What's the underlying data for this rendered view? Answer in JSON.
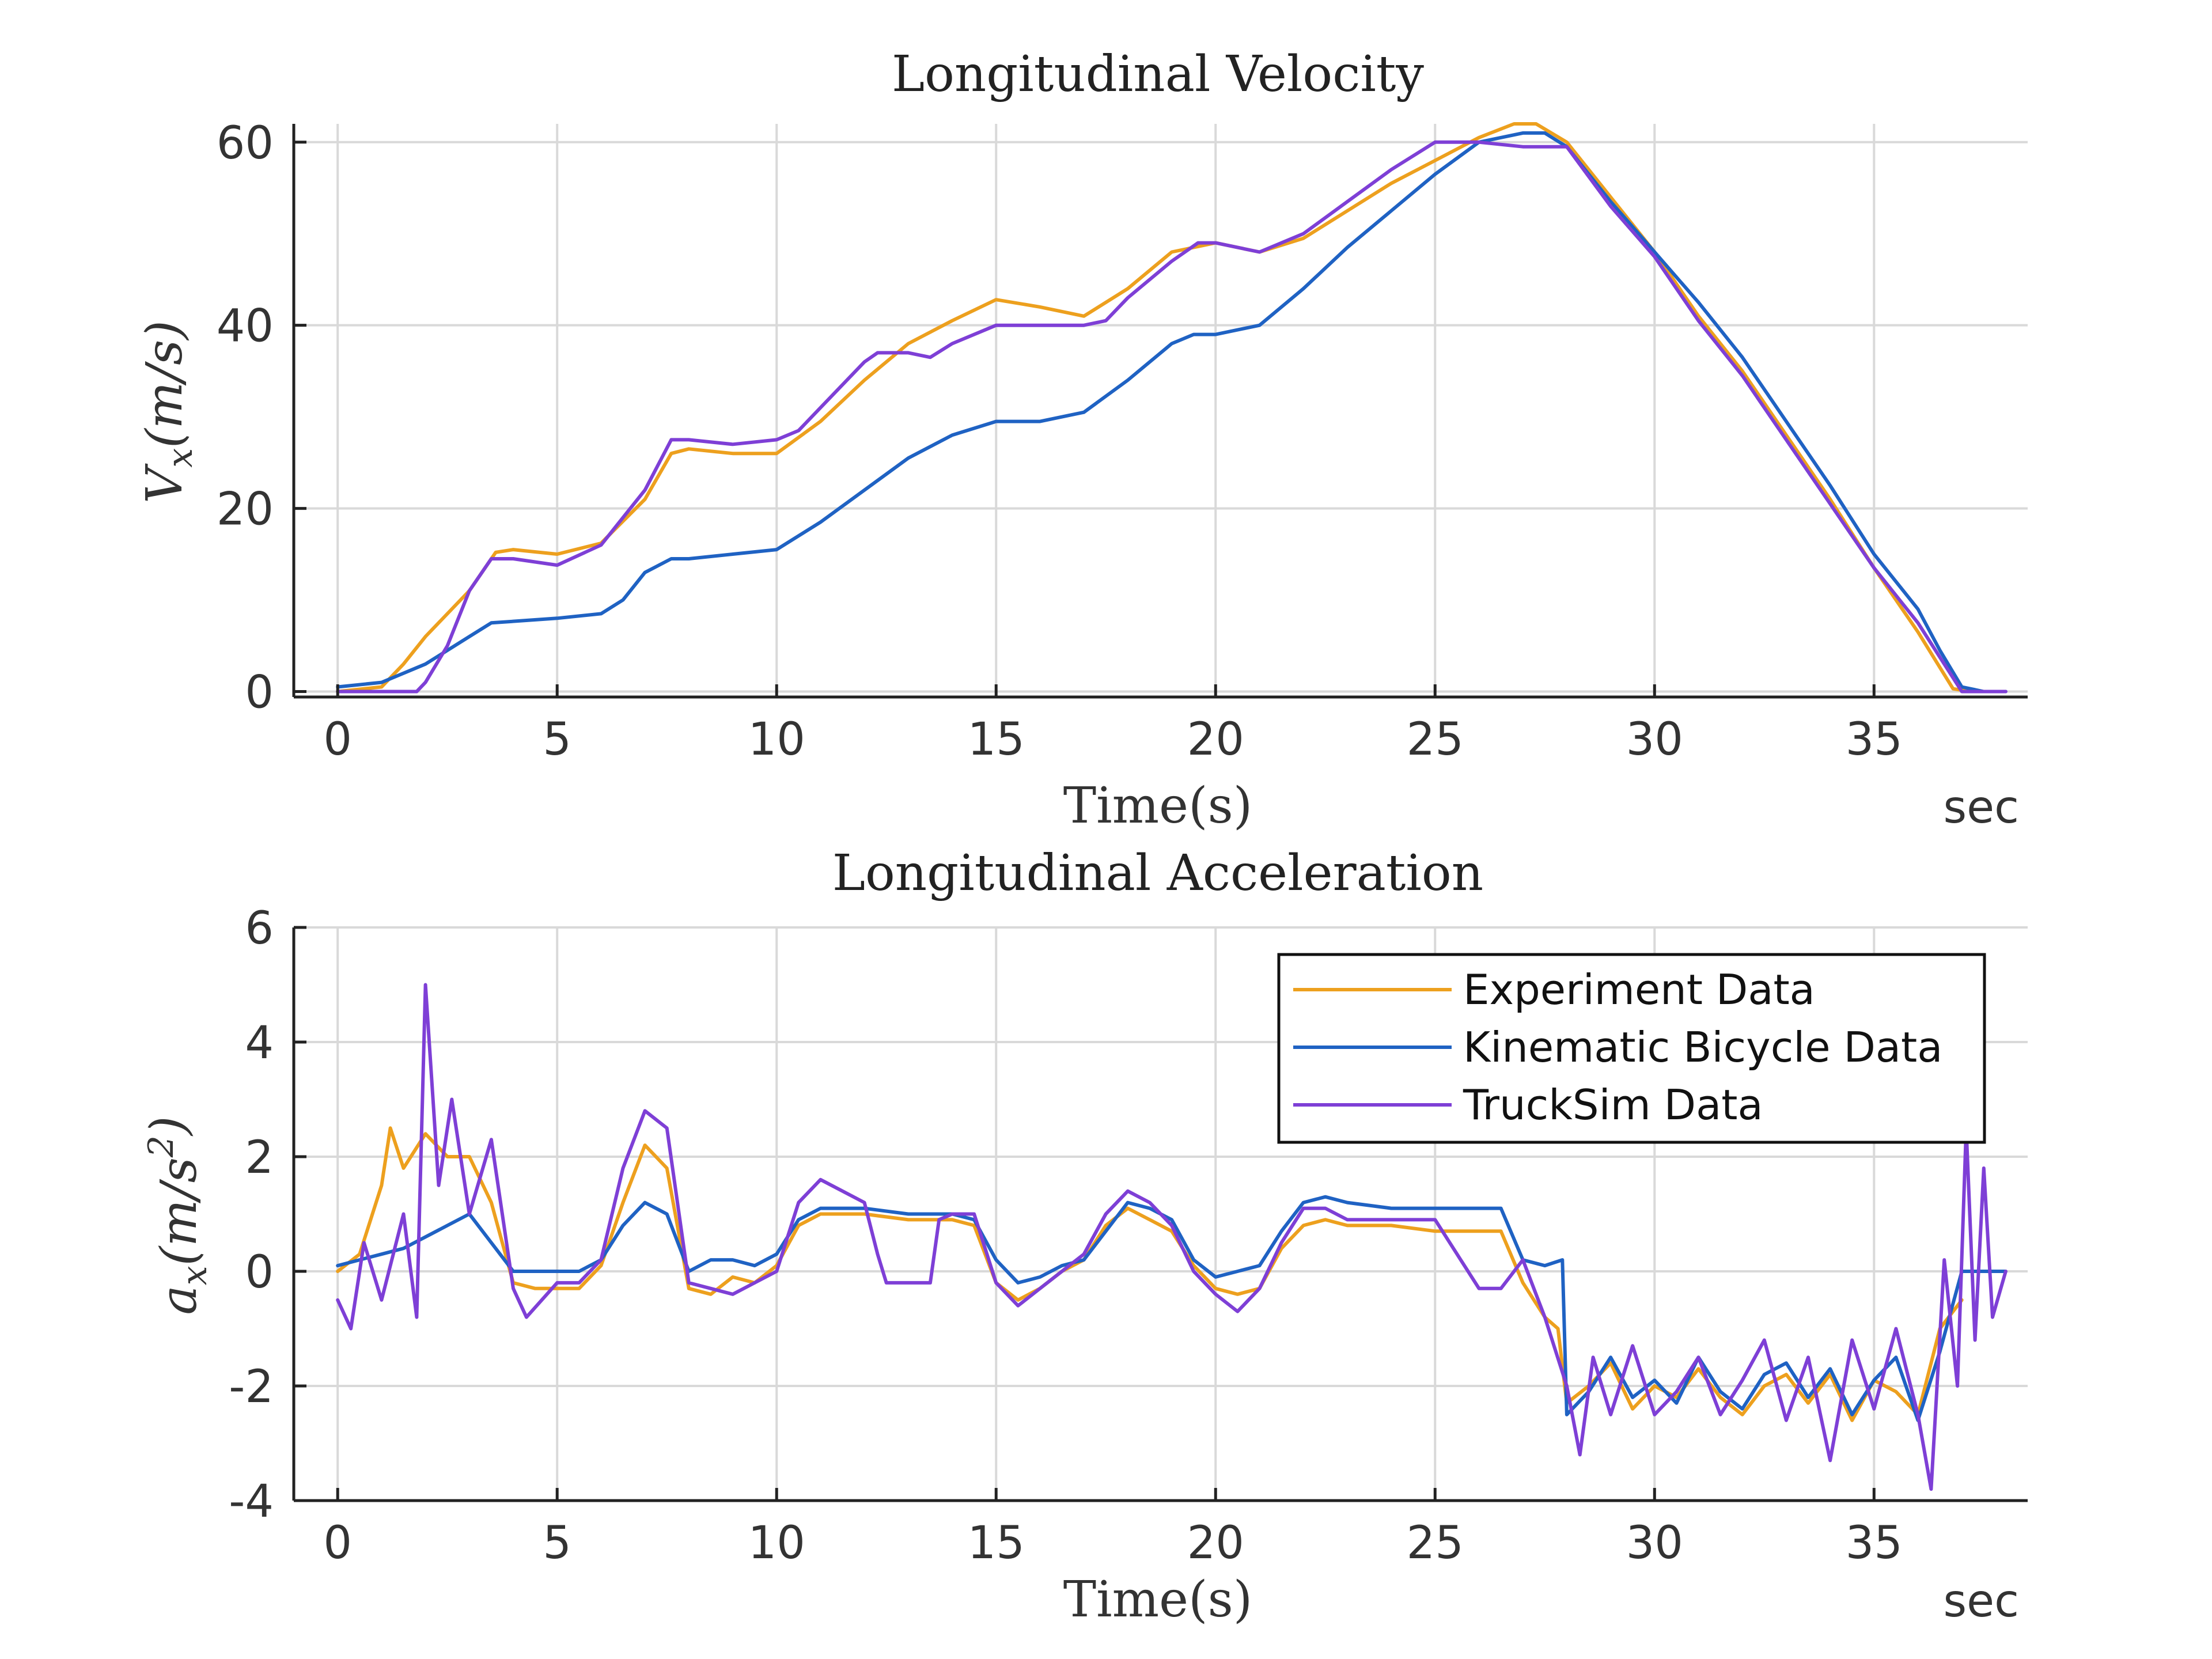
{
  "chart_data": [
    {
      "type": "line",
      "title": "Longitudinal Velocity",
      "xlabel": "Time(s)",
      "ylabel": "V_x(m/s)",
      "x_unit": "sec",
      "xlim": [
        -1,
        38.5
      ],
      "ylim": [
        -0.6,
        62
      ],
      "xticks": [
        0,
        5,
        10,
        15,
        20,
        25,
        30,
        35
      ],
      "yticks": [
        0,
        20,
        40,
        60
      ],
      "grid": true,
      "series": [
        {
          "name": "Experiment Data",
          "color": "#EDA01E",
          "x": [
            0,
            1,
            1.5,
            2,
            3,
            3.6,
            4,
            5,
            6,
            7,
            7.6,
            8,
            9,
            10,
            11,
            12,
            13,
            14,
            15,
            16,
            17,
            18,
            19,
            20,
            21,
            22,
            23,
            24,
            25,
            26,
            26.8,
            27.3,
            28,
            29,
            30,
            31,
            32,
            33,
            34,
            35,
            36,
            36.8,
            37.2,
            37.8
          ],
          "y": [
            0,
            0.5,
            3,
            6,
            11,
            15.2,
            15.5,
            15,
            16.2,
            21,
            26,
            26.5,
            26,
            26,
            29.5,
            34,
            38,
            40.5,
            42.8,
            42,
            41,
            44,
            48,
            49,
            48,
            49.5,
            52.5,
            55.5,
            58,
            60.5,
            62,
            62,
            60,
            54,
            48,
            41,
            35,
            28,
            21,
            13.5,
            6.5,
            0.3,
            0,
            0
          ]
        },
        {
          "name": "Kinematic Bicycle Data",
          "color": "#1F62C3",
          "x": [
            0,
            1,
            2,
            3,
            3.5,
            5,
            6,
            6.5,
            7,
            7.6,
            8,
            9,
            10,
            11,
            12,
            13,
            14,
            15,
            16,
            17,
            18,
            19,
            19.5,
            20,
            21,
            22,
            23,
            24,
            25,
            26,
            27,
            27.5,
            28,
            29,
            30,
            31,
            32,
            33,
            34,
            35,
            36,
            36.5,
            37,
            37.5,
            38
          ],
          "y": [
            0.5,
            1,
            3,
            6,
            7.5,
            8,
            8.5,
            10,
            13,
            14.5,
            14.5,
            15,
            15.5,
            18.5,
            22,
            25.5,
            28,
            29.5,
            29.5,
            30.5,
            34,
            38,
            39,
            39,
            40,
            44,
            48.5,
            52.5,
            56.5,
            60,
            61,
            61,
            59.5,
            53.5,
            48,
            42.5,
            36.5,
            29.5,
            22.5,
            15,
            9,
            4.5,
            0.5,
            0,
            0
          ]
        },
        {
          "name": "TruckSim Data",
          "color": "#7E3FD6",
          "x": [
            0,
            1,
            1.8,
            2,
            2.5,
            3,
            3.5,
            4,
            5,
            6,
            7,
            7.6,
            8,
            9,
            10,
            10.5,
            11,
            12,
            12.3,
            13,
            13.5,
            14,
            15,
            16,
            17,
            17.5,
            18,
            19,
            19.6,
            20,
            21,
            22,
            23,
            24,
            25,
            26,
            27,
            28,
            29,
            30,
            31,
            32,
            33,
            34,
            35,
            36,
            36.6,
            37,
            37.5,
            38
          ],
          "y": [
            0,
            0,
            0,
            1,
            5,
            11,
            14.5,
            14.5,
            13.8,
            16,
            22,
            27.5,
            27.5,
            27,
            27.5,
            28.5,
            31,
            36,
            37,
            37,
            36.5,
            38,
            40,
            40,
            40,
            40.5,
            43,
            47,
            49,
            49,
            48,
            50,
            53.5,
            57,
            60,
            60,
            59.5,
            59.5,
            53,
            47.5,
            40.5,
            34.5,
            27.5,
            20.5,
            13.5,
            7.5,
            3,
            0,
            0,
            0
          ]
        }
      ]
    },
    {
      "type": "line",
      "title": "Longitudinal Acceleration",
      "xlabel": "Time(s)",
      "ylabel": "a_x(m/s^2)",
      "x_unit": "sec",
      "xlim": [
        -1,
        38.5
      ],
      "ylim": [
        -4,
        6
      ],
      "xticks": [
        0,
        5,
        10,
        15,
        20,
        25,
        30,
        35
      ],
      "yticks": [
        -4,
        -2,
        0,
        2,
        4,
        6
      ],
      "grid": true,
      "legend": {
        "position": "top-right",
        "entries": [
          "Experiment Data",
          "Kinematic Bicycle Data",
          "TruckSim Data"
        ]
      },
      "series": [
        {
          "name": "Experiment Data",
          "color": "#EDA01E",
          "x": [
            0,
            0.5,
            1,
            1.2,
            1.5,
            2,
            2.5,
            3,
            3.5,
            4,
            4.5,
            5,
            5.5,
            6,
            6.5,
            7,
            7.5,
            8,
            8.5,
            9,
            9.5,
            10,
            10.5,
            11,
            12,
            13,
            14,
            14.5,
            15,
            15.5,
            16,
            16.5,
            17,
            17.5,
            18,
            18.5,
            19,
            19.5,
            20,
            20.5,
            21,
            21.5,
            22,
            22.5,
            23,
            24,
            25,
            26,
            26.5,
            27,
            27.5,
            27.8,
            28,
            28.5,
            29,
            29.5,
            30,
            30.5,
            31,
            31.5,
            32,
            32.5,
            33,
            33.5,
            34,
            34.5,
            35,
            35.5,
            36,
            36.5,
            37
          ],
          "y": [
            0,
            0.3,
            1.5,
            2.5,
            1.8,
            2.4,
            2.0,
            2.0,
            1.2,
            -0.2,
            -0.3,
            -0.3,
            -0.3,
            0.1,
            1.2,
            2.2,
            1.8,
            -0.3,
            -0.4,
            -0.1,
            -0.2,
            0.1,
            0.8,
            1.0,
            1.0,
            0.9,
            0.9,
            0.8,
            -0.2,
            -0.5,
            -0.3,
            0,
            0.2,
            0.8,
            1.1,
            0.9,
            0.7,
            0.1,
            -0.3,
            -0.4,
            -0.3,
            0.4,
            0.8,
            0.9,
            0.8,
            0.8,
            0.7,
            0.7,
            0.7,
            -0.2,
            -0.8,
            -1.0,
            -2.3,
            -2.0,
            -1.6,
            -2.4,
            -2.0,
            -2.2,
            -1.7,
            -2.2,
            -2.5,
            -2.0,
            -1.8,
            -2.3,
            -1.8,
            -2.6,
            -1.9,
            -2.1,
            -2.5,
            -1.0,
            -0.5
          ]
        },
        {
          "name": "Kinematic Bicycle Data",
          "color": "#1F62C3",
          "x": [
            0,
            0.5,
            1,
            1.5,
            2,
            2.5,
            3,
            3.5,
            4,
            5,
            5.5,
            6,
            6.5,
            7,
            7.5,
            8,
            8.5,
            9,
            9.5,
            10,
            10.5,
            11,
            12,
            13,
            14,
            14.5,
            15,
            15.5,
            16,
            16.5,
            17,
            17.5,
            18,
            18.5,
            19,
            19.5,
            20,
            20.5,
            21,
            21.5,
            22,
            22.5,
            23,
            24,
            25,
            26,
            26.5,
            27,
            27.5,
            27.9,
            28,
            28.5,
            29,
            29.5,
            30,
            30.5,
            31,
            31.5,
            32,
            32.5,
            33,
            33.5,
            34,
            34.5,
            35,
            35.5,
            36,
            36.5,
            37,
            37.5,
            38
          ],
          "y": [
            0.1,
            0.2,
            0.3,
            0.4,
            0.6,
            0.8,
            1.0,
            0.5,
            0,
            0,
            0,
            0.2,
            0.8,
            1.2,
            1.0,
            0,
            0.2,
            0.2,
            0.1,
            0.3,
            0.9,
            1.1,
            1.1,
            1.0,
            1.0,
            0.9,
            0.2,
            -0.2,
            -0.1,
            0.1,
            0.2,
            0.7,
            1.2,
            1.1,
            0.9,
            0.2,
            -0.1,
            0,
            0.1,
            0.7,
            1.2,
            1.3,
            1.2,
            1.1,
            1.1,
            1.1,
            1.1,
            0.2,
            0.1,
            0.2,
            -2.5,
            -2.1,
            -1.5,
            -2.2,
            -1.9,
            -2.3,
            -1.5,
            -2.1,
            -2.4,
            -1.8,
            -1.6,
            -2.2,
            -1.7,
            -2.5,
            -1.9,
            -1.5,
            -2.6,
            -1.4,
            0,
            0,
            0
          ]
        },
        {
          "name": "TruckSim Data",
          "color": "#7E3FD6",
          "x": [
            0,
            0.3,
            0.6,
            1,
            1.5,
            1.8,
            2,
            2.3,
            2.6,
            3,
            3.5,
            4,
            4.3,
            5,
            5.5,
            6,
            6.5,
            7,
            7.5,
            8,
            8.5,
            9,
            9.5,
            10,
            10.5,
            11,
            11.5,
            12,
            12.3,
            12.5,
            13,
            13.5,
            13.7,
            14,
            14.5,
            15,
            15.5,
            16,
            16.5,
            17,
            17.5,
            18,
            18.5,
            19,
            19.5,
            20,
            20.5,
            21,
            21.5,
            22,
            22.5,
            23,
            24,
            25,
            26,
            26.5,
            27,
            27.5,
            28,
            28.3,
            28.6,
            29,
            29.5,
            30,
            30.5,
            31,
            31.5,
            32,
            32.5,
            33,
            33.5,
            34,
            34.5,
            35,
            35.5,
            36,
            36.3,
            36.6,
            36.9,
            37.1,
            37.3,
            37.5,
            37.7,
            38
          ],
          "y": [
            -0.5,
            -1.0,
            0.5,
            -0.5,
            1.0,
            -0.8,
            5.0,
            1.5,
            3.0,
            1.0,
            2.3,
            -0.3,
            -0.8,
            -0.2,
            -0.2,
            0.2,
            1.8,
            2.8,
            2.5,
            -0.2,
            -0.3,
            -0.4,
            -0.2,
            0,
            1.2,
            1.6,
            1.4,
            1.2,
            0.3,
            -0.2,
            -0.2,
            -0.2,
            0.9,
            1.0,
            1.0,
            -0.2,
            -0.6,
            -0.3,
            0,
            0.3,
            1.0,
            1.4,
            1.2,
            0.8,
            0,
            -0.4,
            -0.7,
            -0.3,
            0.5,
            1.1,
            1.1,
            0.9,
            0.9,
            0.9,
            -0.3,
            -0.3,
            0.2,
            -0.8,
            -2.0,
            -3.2,
            -1.5,
            -2.5,
            -1.3,
            -2.5,
            -2.1,
            -1.5,
            -2.5,
            -1.9,
            -1.2,
            -2.6,
            -1.5,
            -3.3,
            -1.2,
            -2.4,
            -1.0,
            -2.5,
            -3.8,
            0.2,
            -2.0,
            2.5,
            -1.2,
            1.8,
            -0.8,
            0
          ]
        }
      ]
    }
  ]
}
